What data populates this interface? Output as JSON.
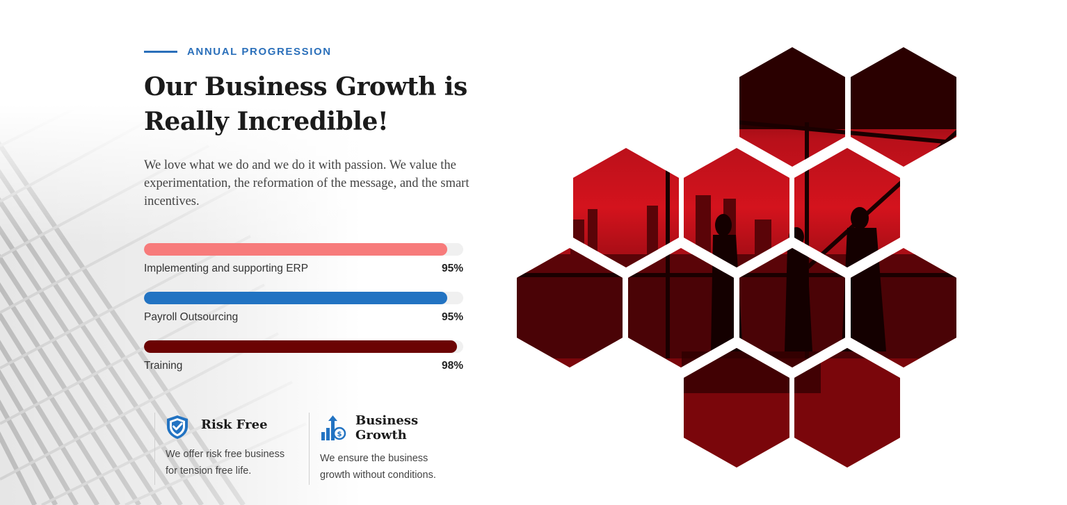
{
  "section": {
    "eyebrow": "ANNUAL PROGRESSION",
    "title": "Our Business Growth is Really Incredible!",
    "description": "We love what we do and we do it with passion. We value the experimentation, the reformation of the message, and the smart incentives."
  },
  "progress": [
    {
      "label": "Implementing and supporting ERP",
      "value_text": "95%",
      "value": 95,
      "color": "#f77b7b"
    },
    {
      "label": "Payroll Outsourcing",
      "value_text": "95%",
      "value": 95,
      "color": "#2273c2"
    },
    {
      "label": "Training",
      "value_text": "98%",
      "value": 98,
      "color": "#6b0303"
    }
  ],
  "features": [
    {
      "icon": "shield-check-icon",
      "title": "Risk Free",
      "text": "We offer risk free business for tension free life."
    },
    {
      "icon": "growth-chart-icon",
      "title_line1": "Business",
      "title_line2": "Growth",
      "text": "We ensure the business growth without conditions."
    }
  ],
  "colors": {
    "accent": "#2a6fba",
    "hex_red": "#c0111a",
    "hex_dark": "#3a0000"
  }
}
